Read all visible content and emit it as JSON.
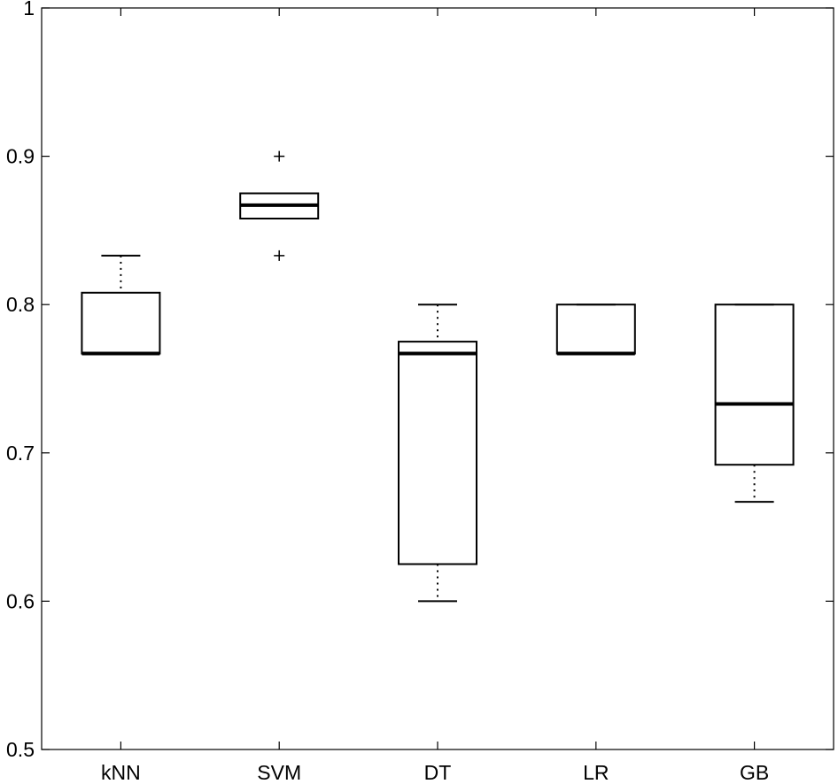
{
  "chart_data": {
    "type": "box",
    "title": "",
    "xlabel": "",
    "ylabel": "",
    "ylim": [
      0.5,
      1.0
    ],
    "yticks": [
      0.5,
      0.6,
      0.7,
      0.8,
      0.9,
      1.0
    ],
    "ytick_labels": [
      "0.5",
      "0.6",
      "0.7",
      "0.8",
      "0.9",
      "1"
    ],
    "grid": false,
    "categories": [
      "kNN",
      "SVM",
      "DT",
      "LR",
      "GB"
    ],
    "boxes": [
      {
        "category": "kNN",
        "whisker_low": 0.767,
        "q1": 0.767,
        "median": 0.767,
        "q3": 0.808,
        "whisker_high": 0.833,
        "outliers": []
      },
      {
        "category": "SVM",
        "whisker_low": 0.858,
        "q1": 0.858,
        "median": 0.867,
        "q3": 0.875,
        "whisker_high": 0.875,
        "outliers": [
          0.9,
          0.833
        ]
      },
      {
        "category": "DT",
        "whisker_low": 0.6,
        "q1": 0.625,
        "median": 0.767,
        "q3": 0.775,
        "whisker_high": 0.8,
        "outliers": []
      },
      {
        "category": "LR",
        "whisker_low": 0.767,
        "q1": 0.767,
        "median": 0.767,
        "q3": 0.8,
        "whisker_high": 0.8,
        "outliers": []
      },
      {
        "category": "GB",
        "whisker_low": 0.667,
        "q1": 0.692,
        "median": 0.733,
        "q3": 0.8,
        "whisker_high": 0.8,
        "outliers": []
      }
    ]
  }
}
